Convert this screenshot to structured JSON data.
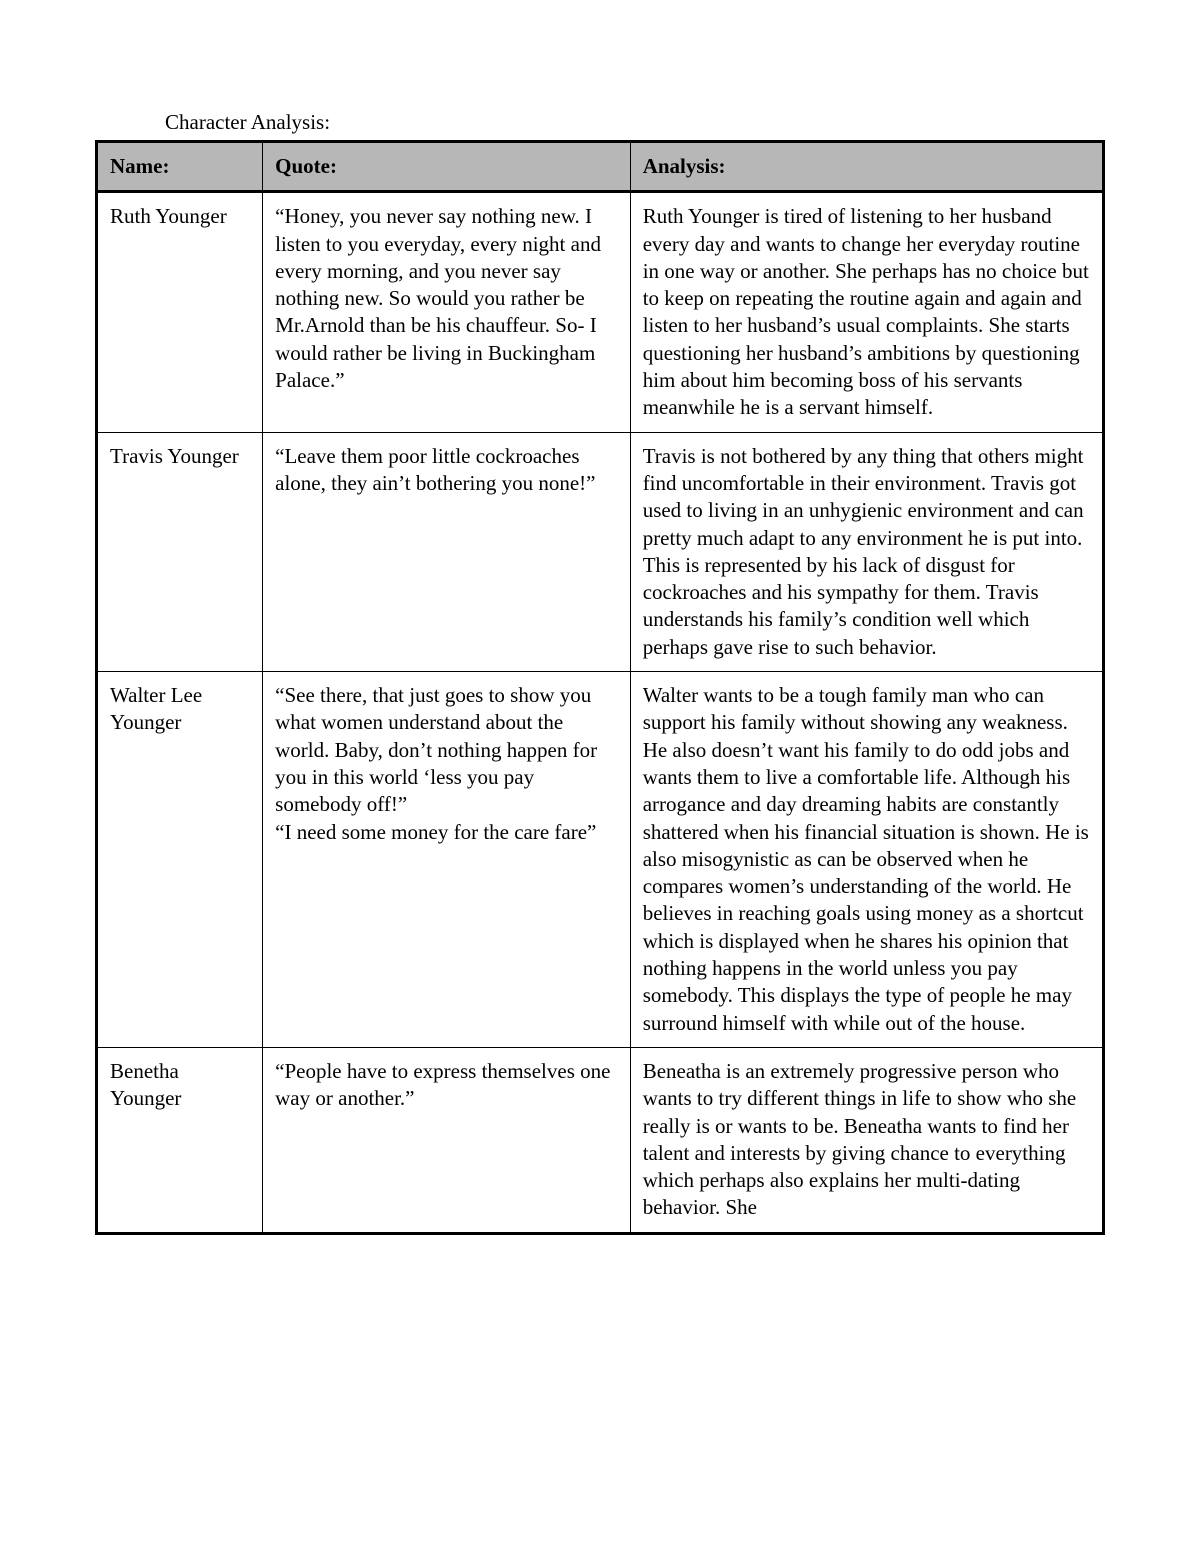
{
  "title": "Character Analysis:",
  "table": {
    "headers": {
      "name": "Name:",
      "quote": "Quote:",
      "analysis": "Analysis:"
    },
    "rows": [
      {
        "name": "Ruth Younger",
        "quote": "“Honey, you never say nothing new. I listen to you everyday, every night and every morning, and you never say nothing new. So would you rather be Mr.Arnold than be his chauffeur. So- I would rather be living in Buckingham Palace.”",
        "analysis": "Ruth Younger is tired of listening to her husband every day and wants to change her everyday routine in one way or another. She perhaps has no choice but to keep on repeating the routine again and again and listen to her husband’s usual complaints. She starts questioning her husband’s ambitions by questioning him about him becoming boss of his servants meanwhile he is a servant himself."
      },
      {
        "name": "Travis Younger",
        "quote": "“Leave them poor little cockroaches alone, they ain’t bothering you none!”",
        "analysis": "Travis is not bothered by any thing that others might find uncomfortable in their environment. Travis got used to living in an unhygienic environment and can pretty much adapt to any environment he is put into. This is represented by his lack of disgust for cockroaches and his sympathy for them. Travis understands his family’s condition well which perhaps gave rise to such behavior."
      },
      {
        "name": "Walter Lee Younger",
        "quote": "“See there, that just goes to show you what women understand about the world. Baby, don’t nothing happen for you in this world ‘less you pay somebody off!”\n“I need some money for the care fare”",
        "analysis": "Walter wants to be a tough family man who can support his family without showing any weakness. He also doesn’t want his family to do odd jobs and wants them to live a comfortable life. Although his arrogance and day dreaming habits are constantly shattered when his financial situation is shown. He is also misogynistic as can be observed when he compares women’s understanding of the world. He believes in reaching goals using money as a shortcut which is displayed when he shares his opinion that nothing happens in the world unless you pay somebody. This displays the type of people he may surround himself with while out of the house."
      },
      {
        "name": "Benetha Younger",
        "quote": "“People have to express themselves one way or another.”",
        "analysis": "Beneatha is an extremely progressive person who wants to try different things in life to show who she really is or wants to be. Beneatha wants to find her talent and interests by giving chance to everything which perhaps also explains her multi-dating behavior. She"
      }
    ]
  }
}
